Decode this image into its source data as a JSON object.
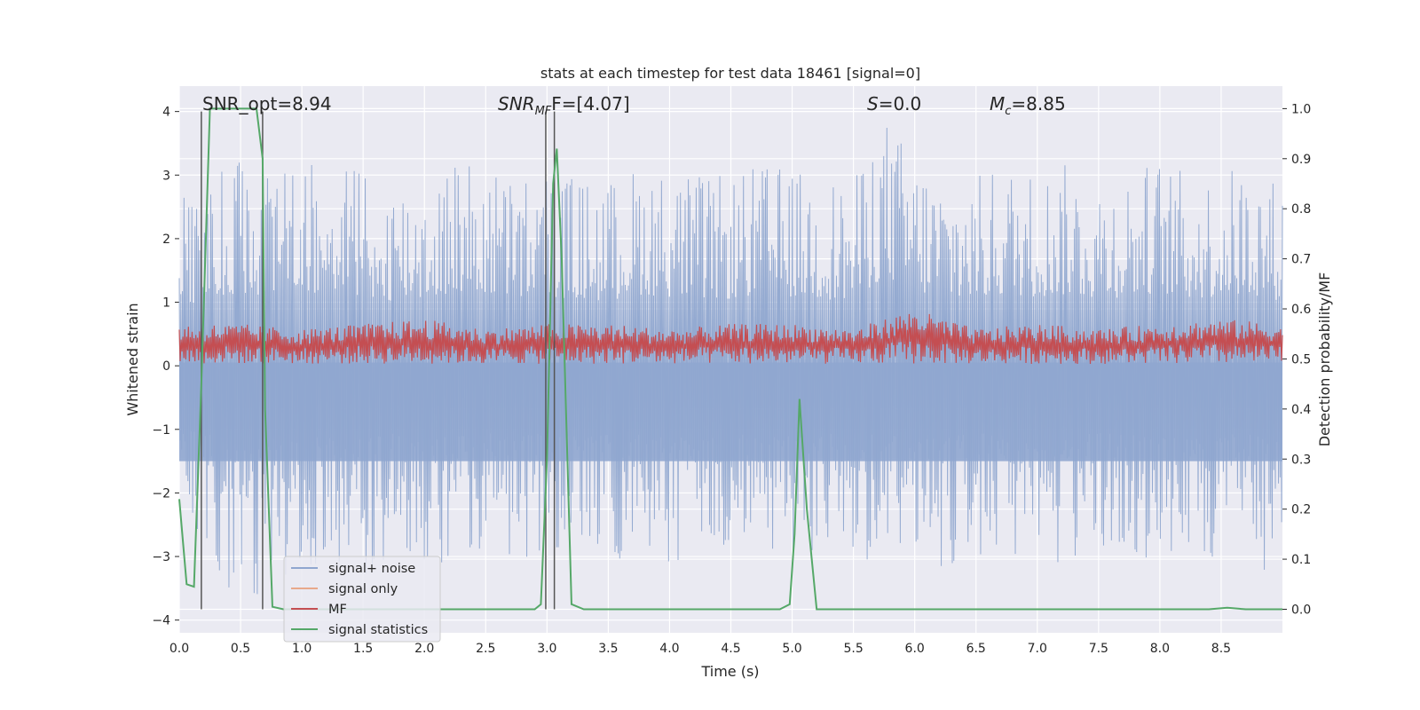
{
  "chart_data": {
    "type": "line",
    "title": "stats at each timestep for test data 18461 [signal=0]",
    "xlabel": "Time (s)",
    "ylabel_left": "Whitened strain",
    "ylabel_right": "Detection probability/MF",
    "xlim": [
      0,
      9
    ],
    "ylim_left": [
      -4.2,
      4.4
    ],
    "ylim_right": [
      -0.047,
      1.045
    ],
    "x_ticks": [
      "0.0",
      "0.5",
      "1.0",
      "1.5",
      "2.0",
      "2.5",
      "3.0",
      "3.5",
      "4.0",
      "4.5",
      "5.0",
      "5.5",
      "6.0",
      "6.5",
      "7.0",
      "7.5",
      "8.0",
      "8.5"
    ],
    "y_ticks_left": [
      "4",
      "3",
      "2",
      "1",
      "0",
      "−1",
      "−2",
      "−3",
      "−4"
    ],
    "y_ticks_right": [
      "1.0",
      "0.9",
      "0.8",
      "0.7",
      "0.6",
      "0.5",
      "0.4",
      "0.3",
      "0.2",
      "0.1",
      "0.0"
    ],
    "grid": true,
    "legend_position": "lower-left",
    "annotations": {
      "snr_opt": "SNR_opt=8.94",
      "snr_mf_prefix": "SNR",
      "snr_mf_sub": "MF",
      "snr_mf_suffix": "F=[4.07]",
      "s_label": "S",
      "s_value": "=0.0",
      "mc_label": "M",
      "mc_sub": "c",
      "mc_value": "=8.85"
    },
    "series": [
      {
        "name": "signal+ noise",
        "color": "#8fa6cf",
        "axis": "left",
        "description": "dense noise band",
        "x": [
          0.0,
          0.25,
          0.5,
          0.75,
          1.0,
          1.25,
          1.5,
          1.75,
          2.0,
          2.25,
          2.5,
          2.75,
          3.0,
          3.25,
          3.5,
          3.75,
          4.0,
          4.25,
          4.5,
          4.75,
          5.0,
          5.25,
          5.5,
          5.75,
          6.0,
          6.25,
          6.5,
          6.75,
          7.0,
          7.25,
          7.5,
          7.75,
          8.0,
          8.25,
          8.5,
          8.75,
          9.0
        ],
        "y_max": [
          2.6,
          3.0,
          3.3,
          3.1,
          3.2,
          3.4,
          3.1,
          2.9,
          3.0,
          3.3,
          3.2,
          3.0,
          3.1,
          3.0,
          2.9,
          3.2,
          3.1,
          3.0,
          3.0,
          3.2,
          3.1,
          3.0,
          2.9,
          4.0,
          3.3,
          3.0,
          3.0,
          3.2,
          3.1,
          3.2,
          3.0,
          3.1,
          3.3,
          3.0,
          3.1,
          3.2,
          2.9
        ],
        "y_min": [
          -2.9,
          -3.0,
          -3.8,
          -3.6,
          -3.1,
          -3.2,
          -3.3,
          -3.0,
          -3.1,
          -3.2,
          -3.0,
          -3.1,
          -3.0,
          -3.2,
          -3.1,
          -3.0,
          -3.3,
          -3.1,
          -3.0,
          -3.2,
          -3.1,
          -3.0,
          -3.2,
          -3.0,
          -3.1,
          -3.2,
          -3.0,
          -3.1,
          -3.7,
          -3.2,
          -3.0,
          -3.1,
          -3.2,
          -3.3,
          -3.0,
          -3.1,
          -3.4
        ]
      },
      {
        "name": "signal only",
        "color": "#e8a98b",
        "axis": "left",
        "x": [],
        "y": []
      },
      {
        "name": "MF",
        "color": "#c44e52",
        "axis": "right",
        "x": [
          0.0,
          0.5,
          1.0,
          1.5,
          2.0,
          2.5,
          3.0,
          3.5,
          4.0,
          4.5,
          5.0,
          5.5,
          6.0,
          6.5,
          7.0,
          7.5,
          8.0,
          8.5,
          9.0
        ],
        "y_max": [
          0.57,
          0.57,
          0.56,
          0.57,
          0.58,
          0.56,
          0.57,
          0.57,
          0.56,
          0.57,
          0.57,
          0.56,
          0.6,
          0.56,
          0.57,
          0.56,
          0.57,
          0.58,
          0.57
        ],
        "y_min": [
          0.49,
          0.49,
          0.49,
          0.49,
          0.49,
          0.49,
          0.49,
          0.49,
          0.49,
          0.49,
          0.49,
          0.49,
          0.49,
          0.49,
          0.49,
          0.49,
          0.49,
          0.49,
          0.49
        ]
      },
      {
        "name": "signal statistics",
        "color": "#55a868",
        "axis": "right",
        "x": [
          0.0,
          0.06,
          0.12,
          0.18,
          0.25,
          0.3,
          0.4,
          0.5,
          0.6,
          0.63,
          0.68,
          0.7,
          0.76,
          0.85,
          0.95,
          1.5,
          2.0,
          2.5,
          2.9,
          2.95,
          3.0,
          3.05,
          3.08,
          3.12,
          3.2,
          3.3,
          3.5,
          4.0,
          4.5,
          4.9,
          4.98,
          5.02,
          5.06,
          5.12,
          5.2,
          5.3,
          6.0,
          7.0,
          8.0,
          8.4,
          8.55,
          8.7,
          9.0
        ],
        "y": [
          0.22,
          0.05,
          0.045,
          0.45,
          1.0,
          1.0,
          1.0,
          1.0,
          1.0,
          1.0,
          0.9,
          0.4,
          0.005,
          0.0,
          0.0,
          0.0,
          0.0,
          0.0,
          0.0,
          0.01,
          0.3,
          0.85,
          0.92,
          0.7,
          0.01,
          0.0,
          0.0,
          0.0,
          0.0,
          0.0,
          0.01,
          0.15,
          0.42,
          0.2,
          0.0,
          0.0,
          0.0,
          0.0,
          0.0,
          0.0,
          0.003,
          0.0,
          0.0
        ]
      }
    ],
    "vertical_markers": [
      0.18,
      0.68,
      2.99,
      3.06
    ]
  }
}
